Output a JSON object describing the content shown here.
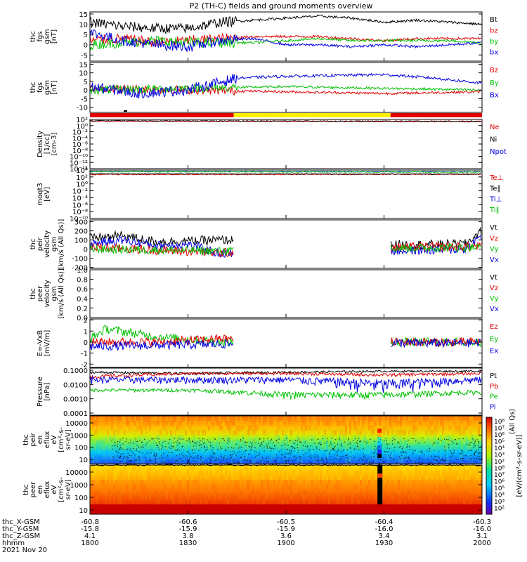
{
  "title": "P2 (TH-C) fields and ground moments overview",
  "panels": [
    {
      "id": "fgs_mag",
      "ylabel": [
        "thc",
        "fgs",
        "gsm",
        "[nT]"
      ],
      "ticks": [
        "15",
        "10",
        "5",
        "0",
        "-5"
      ],
      "legend": [
        {
          "t": "Bt",
          "c": "#000000"
        },
        {
          "t": "bz",
          "c": "#e00000"
        },
        {
          "t": "by",
          "c": "#00c000"
        },
        {
          "t": "bx",
          "c": "#0000e0"
        }
      ]
    },
    {
      "id": "fgs_comp",
      "ylabel": [
        "thc",
        "fgs",
        "gsm",
        "[nT]"
      ],
      "ticks": [
        "15",
        "10",
        "5",
        "0",
        "-5",
        "-10"
      ],
      "legend": [
        {
          "t": "Bz",
          "c": "#e00000"
        },
        {
          "t": "By",
          "c": "#00c000"
        },
        {
          "t": "Bx",
          "c": "#0000e0"
        }
      ]
    },
    {
      "id": "density",
      "ylabel": [
        "Density",
        "[1/cc]",
        "[cm-3]"
      ],
      "ticks": [
        "10²",
        "10⁰",
        "10⁻²",
        "10⁻⁴",
        "10⁻⁶",
        "10⁻⁸",
        "10⁻¹⁰",
        "10⁻¹²",
        "10⁻¹⁴"
      ],
      "legend": [
        {
          "t": "Ne",
          "c": "#e00000"
        },
        {
          "t": "Ni",
          "c": "#000000"
        },
        {
          "t": "Npot",
          "c": "#0000e0"
        }
      ]
    },
    {
      "id": "temperature",
      "ylabel": [
        "moqt3",
        "[eV]"
      ],
      "ticks": [
        "10⁴",
        "10²",
        "10⁰",
        "10⁻²",
        "10⁻⁴",
        "10⁻⁶",
        "10⁻⁸",
        "10⁻¹⁰"
      ],
      "legend": [
        {
          "t": "Te⊥",
          "c": "#e00000"
        },
        {
          "t": "Te∥",
          "c": "#000000"
        },
        {
          "t": "Ti⊥",
          "c": "#0000e0"
        },
        {
          "t": "Ti∥",
          "c": "#00c000"
        }
      ]
    },
    {
      "id": "peir_vel",
      "ylabel": [
        "thc",
        "peir",
        "velocity",
        "gsm",
        "[km/s (All Qs)]"
      ],
      "ticks": [
        "300",
        "200",
        "100",
        "0",
        "-100",
        "-200"
      ],
      "legend": [
        {
          "t": "Vt",
          "c": "#000000"
        },
        {
          "t": "Vz",
          "c": "#e00000"
        },
        {
          "t": "Vy",
          "c": "#00c000"
        },
        {
          "t": "Vx",
          "c": "#0000e0"
        }
      ]
    },
    {
      "id": "peer_vel",
      "ylabel": [
        "thc",
        "peer",
        "velocity",
        "gsm",
        "[km/s (All Qs)]"
      ],
      "ticks": [
        "1.0",
        "0.8",
        "0.6",
        "0.4",
        "0.2",
        "0.0"
      ],
      "legend": [
        {
          "t": "Vt",
          "c": "#000000"
        },
        {
          "t": "Vz",
          "c": "#e00000"
        },
        {
          "t": "Vy",
          "c": "#00c000"
        },
        {
          "t": "Vx",
          "c": "#0000e0"
        }
      ]
    },
    {
      "id": "efield",
      "ylabel": [
        "E=-VxB",
        "[mV/m]"
      ],
      "ticks": [
        "2",
        "1",
        "0",
        "-1",
        "-2"
      ],
      "legend": [
        {
          "t": "Ez",
          "c": "#e00000"
        },
        {
          "t": "Ey",
          "c": "#00c000"
        },
        {
          "t": "Ex",
          "c": "#0000e0"
        }
      ]
    },
    {
      "id": "pressure",
      "ylabel": [
        "Pressure",
        "[nPa]"
      ],
      "ticks": [
        "0.1000",
        "0.0100",
        "0.0010",
        "0.0001"
      ],
      "legend": [
        {
          "t": "Pt",
          "c": "#000000"
        },
        {
          "t": "Pb",
          "c": "#e00000"
        },
        {
          "t": "Pe",
          "c": "#00c000"
        },
        {
          "t": "Pi",
          "c": "#0000e0"
        }
      ]
    },
    {
      "id": "peir_spec",
      "ylabel": [
        "thc",
        "peir",
        "en",
        "eflux",
        "eV",
        "[cm²-s-",
        "sr-eV]"
      ],
      "ticks": [
        "10000",
        "1000",
        "100",
        "10"
      ]
    },
    {
      "id": "peer_spec",
      "ylabel": [
        "thc",
        "peer",
        "en",
        "eflux",
        "eV",
        "[cm²-s-",
        "sr-eV]"
      ],
      "ticks": [
        "10000",
        "1000",
        "100",
        "10"
      ]
    }
  ],
  "colorbar": {
    "ticks": [
      "10⁸",
      "10⁷",
      "10⁶",
      "10⁵",
      "10⁴",
      "10³",
      "10²",
      "10⁸",
      "10⁷",
      "10⁶",
      "10⁵",
      "10⁴",
      "10³",
      "10²"
    ],
    "label": "[eV/(cm²-s-sr-eV)]",
    "label2": "(All Qs)"
  },
  "xaxis": {
    "row_labels": [
      "thc_X-GSM",
      "thc_Y-GSM",
      "thc_Z-GSM",
      "hhmm",
      "2021 Nov 20"
    ],
    "columns": [
      {
        "x": "-60.8",
        "y": "-15.8",
        "z": "4.1",
        "t": "1800"
      },
      {
        "x": "-60.6",
        "y": "-15.9",
        "z": "3.8",
        "t": "1830"
      },
      {
        "x": "-60.5",
        "y": "-15.9",
        "z": "3.6",
        "t": "1900"
      },
      {
        "x": "-60.4",
        "y": "-16.0",
        "z": "3.4",
        "t": "1930"
      },
      {
        "x": "-60.3",
        "y": "-16.0",
        "z": "3.1",
        "t": "2000"
      }
    ]
  },
  "chart_data": {
    "type": "line",
    "title": "P2 (TH-C) fields and ground moments overview",
    "time_range": [
      "1800",
      "2000"
    ],
    "date": "2021 Nov 20",
    "mode_bar": [
      {
        "from": "1800",
        "to": "1844",
        "color": "#e00000"
      },
      {
        "from": "1844",
        "to": "1932",
        "color": "#ffee00"
      },
      {
        "from": "1932",
        "to": "2000",
        "color": "#e00000"
      }
    ],
    "series": [
      {
        "panel": "fgs_mag",
        "name": "Bt",
        "color": "#000000",
        "x": [
          1800,
          1810,
          1820,
          1830,
          1840,
          1850,
          1900,
          1910,
          1920,
          1930,
          1940,
          1950,
          2000
        ],
        "values": [
          11,
          9,
          8,
          8,
          11,
          12,
          13,
          14,
          13,
          11,
          12,
          11,
          10
        ]
      },
      {
        "panel": "fgs_mag",
        "name": "bz",
        "color": "#e00000",
        "x": [
          1800,
          1810,
          1820,
          1830,
          1840,
          1850,
          1900,
          1910,
          1920,
          1930,
          1940,
          1950,
          2000
        ],
        "values": [
          2,
          3,
          1,
          2,
          3,
          4,
          4,
          4,
          3,
          2,
          3,
          3,
          3
        ]
      },
      {
        "panel": "fgs_mag",
        "name": "by",
        "color": "#00c000",
        "x": [
          1800,
          1810,
          1820,
          1830,
          1840,
          1850,
          1900,
          1910,
          1920,
          1930,
          1940,
          1950,
          2000
        ],
        "values": [
          0,
          1,
          2,
          1,
          1,
          1,
          2,
          3,
          2,
          2,
          2,
          2,
          1
        ]
      },
      {
        "panel": "fgs_mag",
        "name": "bx",
        "color": "#0000e0",
        "x": [
          1800,
          1810,
          1820,
          1830,
          1840,
          1850,
          1900,
          1910,
          1920,
          1930,
          1940,
          1950,
          2000
        ],
        "values": [
          6,
          2,
          0,
          -1,
          2,
          3,
          0,
          0,
          -1,
          0,
          -1,
          0,
          1
        ]
      },
      {
        "panel": "peir_vel",
        "name": "Vt",
        "color": "#000000",
        "x": [
          1800,
          1810,
          1820,
          1830,
          1840,
          1933,
          1945,
          1955,
          2000
        ],
        "values": [
          120,
          150,
          80,
          90,
          100,
          50,
          50,
          60,
          200
        ]
      },
      {
        "panel": "peir_vel",
        "name": "Vx",
        "color": "#0000e0",
        "x": [
          1800,
          1810,
          1820,
          1830,
          1840,
          1933,
          1945,
          1955,
          2000
        ],
        "values": [
          60,
          100,
          40,
          50,
          -50,
          -20,
          -10,
          0,
          150
        ]
      },
      {
        "panel": "pressure",
        "name": "Pt",
        "color": "#000000",
        "x": [
          1800,
          1830,
          1900,
          1930,
          2000
        ],
        "values": [
          0.06,
          0.05,
          0.06,
          0.07,
          0.07
        ]
      },
      {
        "panel": "pressure",
        "name": "Pb",
        "color": "#e00000",
        "x": [
          1800,
          1830,
          1900,
          1930,
          2000
        ],
        "values": [
          0.03,
          0.05,
          0.05,
          0.04,
          0.05
        ]
      },
      {
        "panel": "pressure",
        "name": "Pe",
        "color": "#00c000",
        "x": [
          1800,
          1830,
          1900,
          1930,
          2000
        ],
        "values": [
          0.004,
          0.004,
          0.002,
          0.002,
          0.003
        ]
      },
      {
        "panel": "pressure",
        "name": "Pi",
        "color": "#0000e0",
        "x": [
          1800,
          1830,
          1900,
          1930,
          2000
        ],
        "values": [
          0.02,
          0.02,
          0.02,
          0.01,
          0.02
        ]
      }
    ]
  }
}
